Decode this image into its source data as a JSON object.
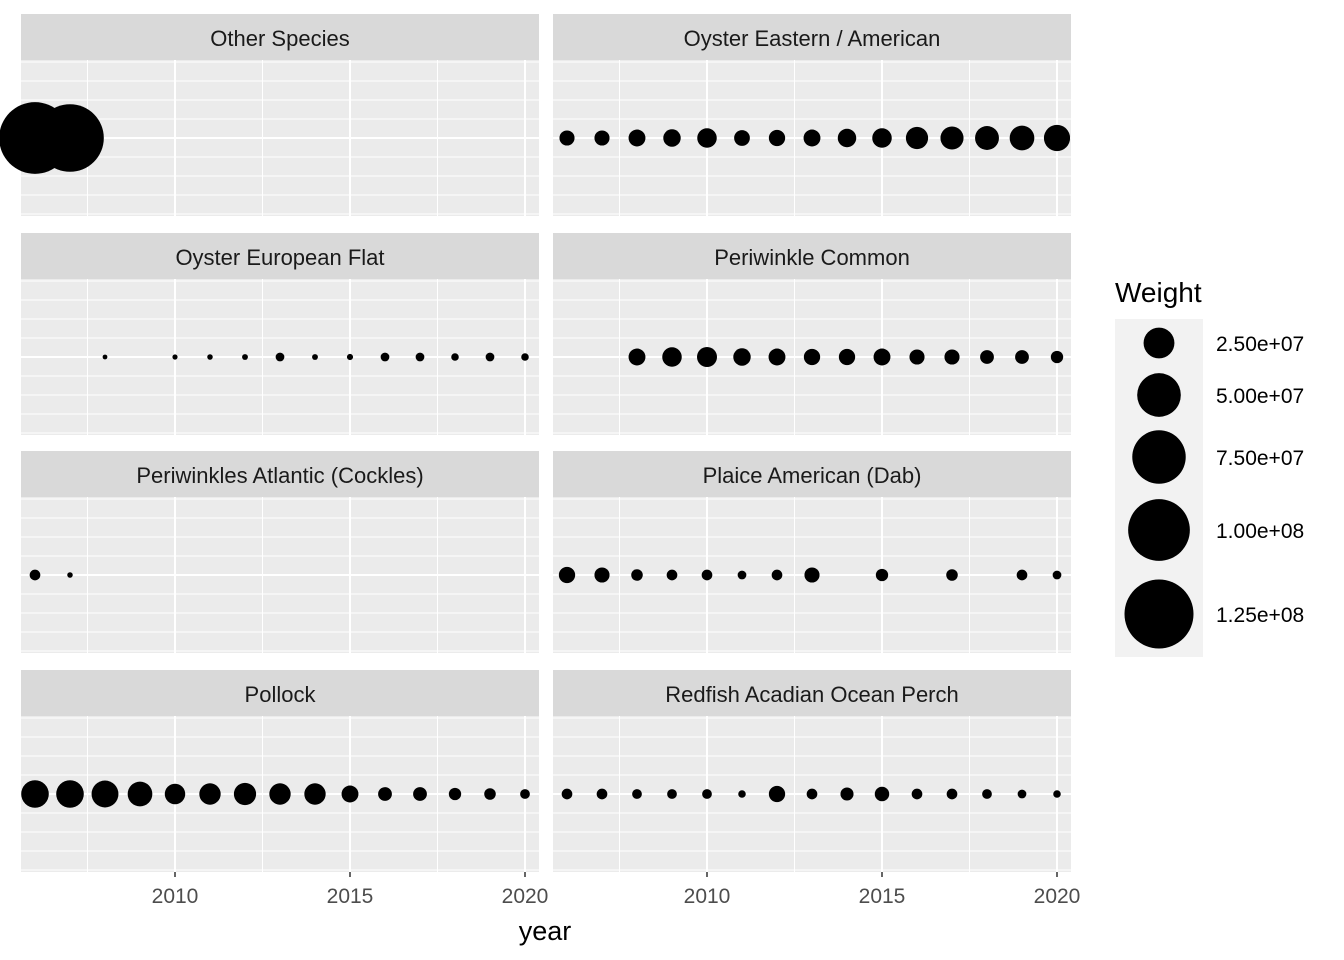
{
  "chart_data": {
    "type": "scatter",
    "facet_layout": "4 rows x 2 columns",
    "xlabel": "year",
    "ylabel": "",
    "xlim": [
      2005.6,
      2020.4
    ],
    "x_ticks": [
      2010,
      2015,
      2020
    ],
    "x_tick_labels": [
      "2010",
      "2015",
      "2020"
    ],
    "grid": true,
    "size_legend": {
      "title": "Weight",
      "placement": "right",
      "values": [
        25000000,
        50000000,
        75000000,
        100000000,
        125000000
      ],
      "labels": [
        "2.50e+07",
        "5.00e+07",
        "7.50e+07",
        "1.00e+08",
        "1.25e+08"
      ]
    },
    "panels": [
      {
        "name": "Other Species",
        "points": [
          {
            "x": 2006,
            "weight": 135000000
          },
          {
            "x": 2007,
            "weight": 120000000
          }
        ]
      },
      {
        "name": "Oyster Eastern / American",
        "points": [
          {
            "x": 2006,
            "weight": 6000000
          },
          {
            "x": 2007,
            "weight": 6000000
          },
          {
            "x": 2008,
            "weight": 7500000
          },
          {
            "x": 2009,
            "weight": 8000000
          },
          {
            "x": 2010,
            "weight": 10000000
          },
          {
            "x": 2011,
            "weight": 6500000
          },
          {
            "x": 2012,
            "weight": 7000000
          },
          {
            "x": 2013,
            "weight": 7500000
          },
          {
            "x": 2014,
            "weight": 9000000
          },
          {
            "x": 2015,
            "weight": 10000000
          },
          {
            "x": 2016,
            "weight": 13000000
          },
          {
            "x": 2017,
            "weight": 14000000
          },
          {
            "x": 2018,
            "weight": 15000000
          },
          {
            "x": 2019,
            "weight": 16000000
          },
          {
            "x": 2020,
            "weight": 18000000
          }
        ]
      },
      {
        "name": "Oyster European Flat",
        "points": [
          {
            "x": 2008,
            "weight": 600000
          },
          {
            "x": 2010,
            "weight": 700000
          },
          {
            "x": 2011,
            "weight": 800000
          },
          {
            "x": 2012,
            "weight": 900000
          },
          {
            "x": 2013,
            "weight": 2000000
          },
          {
            "x": 2014,
            "weight": 900000
          },
          {
            "x": 2015,
            "weight": 1000000
          },
          {
            "x": 2016,
            "weight": 2000000
          },
          {
            "x": 2017,
            "weight": 2000000
          },
          {
            "x": 2018,
            "weight": 1500000
          },
          {
            "x": 2019,
            "weight": 2000000
          },
          {
            "x": 2020,
            "weight": 1500000
          }
        ]
      },
      {
        "name": "Periwinkle Common",
        "points": [
          {
            "x": 2008,
            "weight": 7500000
          },
          {
            "x": 2009,
            "weight": 10000000
          },
          {
            "x": 2010,
            "weight": 10500000
          },
          {
            "x": 2011,
            "weight": 8000000
          },
          {
            "x": 2012,
            "weight": 7500000
          },
          {
            "x": 2013,
            "weight": 7000000
          },
          {
            "x": 2014,
            "weight": 7000000
          },
          {
            "x": 2015,
            "weight": 7500000
          },
          {
            "x": 2016,
            "weight": 6000000
          },
          {
            "x": 2017,
            "weight": 6000000
          },
          {
            "x": 2018,
            "weight": 5000000
          },
          {
            "x": 2019,
            "weight": 5000000
          },
          {
            "x": 2020,
            "weight": 4000000
          }
        ]
      },
      {
        "name": "Periwinkles Atlantic (Cockles)",
        "points": [
          {
            "x": 2006,
            "weight": 3000000
          },
          {
            "x": 2007,
            "weight": 800000
          }
        ]
      },
      {
        "name": "Plaice American (Dab)",
        "points": [
          {
            "x": 2006,
            "weight": 7000000
          },
          {
            "x": 2007,
            "weight": 6000000
          },
          {
            "x": 2008,
            "weight": 3500000
          },
          {
            "x": 2009,
            "weight": 3000000
          },
          {
            "x": 2010,
            "weight": 3000000
          },
          {
            "x": 2011,
            "weight": 2000000
          },
          {
            "x": 2012,
            "weight": 3000000
          },
          {
            "x": 2013,
            "weight": 6000000
          },
          {
            "x": 2015,
            "weight": 4000000
          },
          {
            "x": 2017,
            "weight": 3500000
          },
          {
            "x": 2019,
            "weight": 3000000
          },
          {
            "x": 2020,
            "weight": 2000000
          }
        ]
      },
      {
        "name": "Pollock",
        "points": [
          {
            "x": 2006,
            "weight": 20000000
          },
          {
            "x": 2007,
            "weight": 20000000
          },
          {
            "x": 2008,
            "weight": 19000000
          },
          {
            "x": 2009,
            "weight": 16000000
          },
          {
            "x": 2010,
            "weight": 11000000
          },
          {
            "x": 2011,
            "weight": 12000000
          },
          {
            "x": 2012,
            "weight": 13000000
          },
          {
            "x": 2013,
            "weight": 12000000
          },
          {
            "x": 2014,
            "weight": 12000000
          },
          {
            "x": 2015,
            "weight": 7500000
          },
          {
            "x": 2016,
            "weight": 5000000
          },
          {
            "x": 2017,
            "weight": 5000000
          },
          {
            "x": 2018,
            "weight": 4000000
          },
          {
            "x": 2019,
            "weight": 3500000
          },
          {
            "x": 2020,
            "weight": 2500000
          }
        ]
      },
      {
        "name": "Redfish Acadian Ocean Perch",
        "points": [
          {
            "x": 2006,
            "weight": 3000000
          },
          {
            "x": 2007,
            "weight": 3000000
          },
          {
            "x": 2008,
            "weight": 2500000
          },
          {
            "x": 2009,
            "weight": 2500000
          },
          {
            "x": 2010,
            "weight": 2500000
          },
          {
            "x": 2011,
            "weight": 1500000
          },
          {
            "x": 2012,
            "weight": 7000000
          },
          {
            "x": 2013,
            "weight": 3000000
          },
          {
            "x": 2014,
            "weight": 4500000
          },
          {
            "x": 2015,
            "weight": 5500000
          },
          {
            "x": 2016,
            "weight": 3000000
          },
          {
            "x": 2017,
            "weight": 3000000
          },
          {
            "x": 2018,
            "weight": 2500000
          },
          {
            "x": 2019,
            "weight": 2000000
          },
          {
            "x": 2020,
            "weight": 1500000
          }
        ]
      }
    ]
  }
}
